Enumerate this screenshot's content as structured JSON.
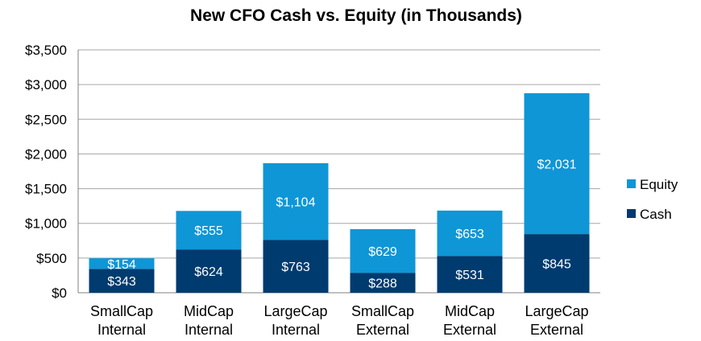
{
  "chart_data": {
    "type": "bar",
    "stacked": true,
    "title": "New CFO Cash vs. Equity (in Thousands)",
    "xlabel": "",
    "ylabel": "",
    "ylim": [
      0,
      3500
    ],
    "yticks": [
      0,
      500,
      1000,
      1500,
      2000,
      2500,
      3000,
      3500
    ],
    "ytick_labels": [
      "$0",
      "$500",
      "$1,000",
      "$1,500",
      "$2,000",
      "$2,500",
      "$3,000",
      "$3,500"
    ],
    "grid": true,
    "legend_position": "right",
    "categories": [
      [
        "SmallCap",
        "Internal"
      ],
      [
        "MidCap",
        "Internal"
      ],
      [
        "LargeCap",
        "Internal"
      ],
      [
        "SmallCap",
        "External"
      ],
      [
        "MidCap",
        "External"
      ],
      [
        "LargeCap",
        "External"
      ]
    ],
    "series": [
      {
        "name": "Cash",
        "color": "#003b6f",
        "values": [
          343,
          624,
          763,
          288,
          531,
          845
        ],
        "labels": [
          "$343",
          "$624",
          "$763",
          "$288",
          "$531",
          "$845"
        ]
      },
      {
        "name": "Equity",
        "color": "#0f96d6",
        "values": [
          154,
          555,
          1104,
          629,
          653,
          2031
        ],
        "labels": [
          "$154",
          "$555",
          "$1,104",
          "$629",
          "$653",
          "$2,031"
        ]
      }
    ],
    "legend": [
      "Equity",
      "Cash"
    ]
  }
}
